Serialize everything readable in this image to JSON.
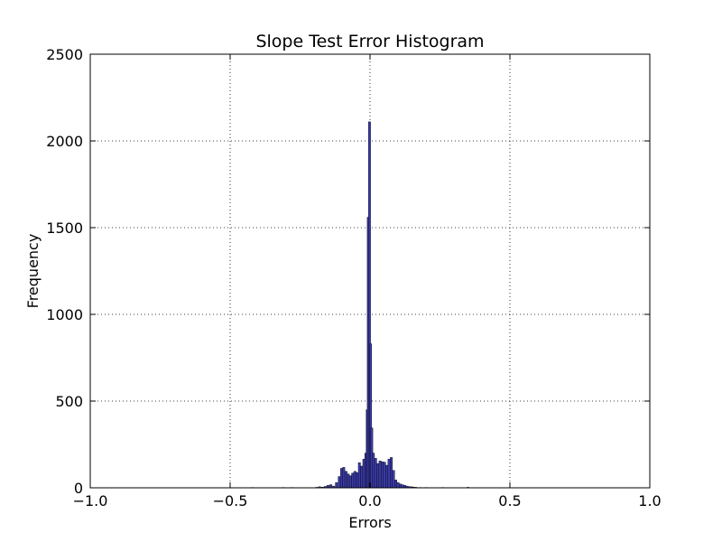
{
  "chart_data": {
    "type": "bar",
    "title": "Slope Test Error Histogram",
    "xlabel": "Errors",
    "ylabel": "Frequency",
    "xlim": [
      -1.0,
      1.0
    ],
    "ylim": [
      0,
      2500
    ],
    "xticks": [
      -1.0,
      -0.5,
      0.0,
      0.5,
      1.0
    ],
    "xtick_labels": [
      "−1.0",
      "−0.5",
      "0.0",
      "0.5",
      "1.0"
    ],
    "yticks": [
      0,
      500,
      1000,
      1500,
      2000,
      2500
    ],
    "ytick_labels": [
      "0",
      "500",
      "1000",
      "1500",
      "2000",
      "2500"
    ],
    "grid": true,
    "bar_color": "#3a3aa8",
    "bar_edge_color": "#000000",
    "bins": [
      {
        "x": -0.42,
        "count": 2
      },
      {
        "x": -0.31,
        "count": 2
      },
      {
        "x": -0.28,
        "count": 2
      },
      {
        "x": -0.19,
        "count": 3
      },
      {
        "x": -0.18,
        "count": 6
      },
      {
        "x": -0.17,
        "count": 4
      },
      {
        "x": -0.16,
        "count": 8
      },
      {
        "x": -0.15,
        "count": 14
      },
      {
        "x": -0.14,
        "count": 18
      },
      {
        "x": -0.13,
        "count": 10
      },
      {
        "x": -0.12,
        "count": 30
      },
      {
        "x": -0.11,
        "count": 65
      },
      {
        "x": -0.102,
        "count": 112
      },
      {
        "x": -0.094,
        "count": 118
      },
      {
        "x": -0.086,
        "count": 95
      },
      {
        "x": -0.078,
        "count": 80
      },
      {
        "x": -0.07,
        "count": 70
      },
      {
        "x": -0.062,
        "count": 85
      },
      {
        "x": -0.054,
        "count": 95
      },
      {
        "x": -0.046,
        "count": 88
      },
      {
        "x": -0.038,
        "count": 145
      },
      {
        "x": -0.03,
        "count": 125
      },
      {
        "x": -0.022,
        "count": 165
      },
      {
        "x": -0.015,
        "count": 200
      },
      {
        "x": -0.01,
        "count": 450
      },
      {
        "x": -0.006,
        "count": 1560
      },
      {
        "x": -0.002,
        "count": 2110
      },
      {
        "x": 0.002,
        "count": 830
      },
      {
        "x": 0.006,
        "count": 345
      },
      {
        "x": 0.012,
        "count": 200
      },
      {
        "x": 0.02,
        "count": 170
      },
      {
        "x": 0.028,
        "count": 140
      },
      {
        "x": 0.036,
        "count": 155
      },
      {
        "x": 0.044,
        "count": 150
      },
      {
        "x": 0.052,
        "count": 148
      },
      {
        "x": 0.06,
        "count": 130
      },
      {
        "x": 0.068,
        "count": 165
      },
      {
        "x": 0.076,
        "count": 175
      },
      {
        "x": 0.084,
        "count": 100
      },
      {
        "x": 0.092,
        "count": 45
      },
      {
        "x": 0.1,
        "count": 30
      },
      {
        "x": 0.108,
        "count": 22
      },
      {
        "x": 0.116,
        "count": 18
      },
      {
        "x": 0.124,
        "count": 14
      },
      {
        "x": 0.132,
        "count": 10
      },
      {
        "x": 0.14,
        "count": 7
      },
      {
        "x": 0.148,
        "count": 6
      },
      {
        "x": 0.156,
        "count": 4
      },
      {
        "x": 0.164,
        "count": 3
      },
      {
        "x": 0.18,
        "count": 2
      },
      {
        "x": 0.2,
        "count": 2
      },
      {
        "x": 0.26,
        "count": 2
      },
      {
        "x": 0.35,
        "count": 3
      }
    ]
  }
}
